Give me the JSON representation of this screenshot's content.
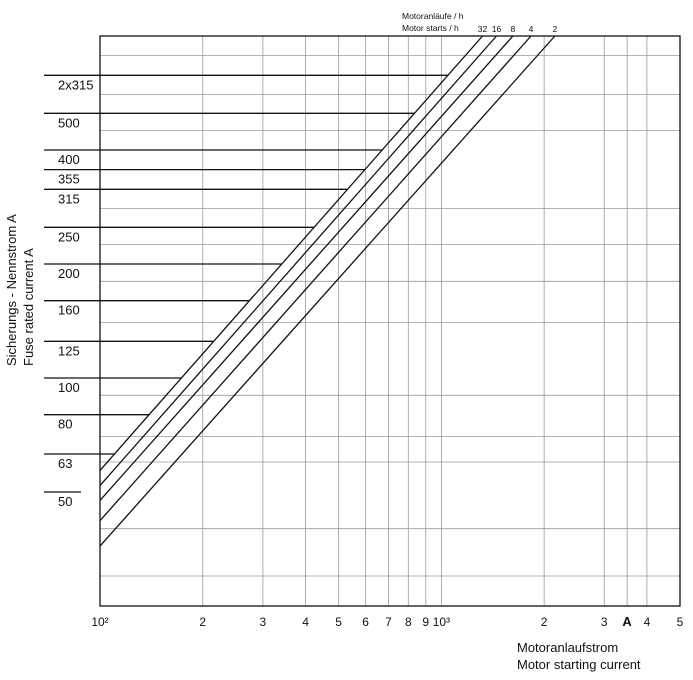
{
  "chart_data": {
    "type": "line",
    "x_scale": "log",
    "y_scale": "log",
    "xlim": [
      100,
      5000
    ],
    "ylim": [
      25,
      800
    ],
    "grid": true,
    "x_tick_labels": [
      {
        "value": 100,
        "label": "10²"
      },
      {
        "value": 200,
        "label": "2"
      },
      {
        "value": 300,
        "label": "3"
      },
      {
        "value": 400,
        "label": "4"
      },
      {
        "value": 500,
        "label": "5"
      },
      {
        "value": 600,
        "label": "6"
      },
      {
        "value": 700,
        "label": "7"
      },
      {
        "value": 800,
        "label": "8"
      },
      {
        "value": 900,
        "label": "9"
      },
      {
        "value": 1000,
        "label": "10³"
      },
      {
        "value": 2000,
        "label": "2"
      },
      {
        "value": 3000,
        "label": "3"
      },
      {
        "value": 3500,
        "label": "A"
      },
      {
        "value": 4000,
        "label": "4"
      },
      {
        "value": 5000,
        "label": "5"
      }
    ],
    "xlabel": [
      "Motoranlaufstrom",
      "Motor starting current"
    ],
    "ylabel": [
      "Sicherungs - Nennstrom   A",
      "Fuse rated current   A"
    ],
    "fuse_ratings": [
      {
        "label": "50",
        "value": 50
      },
      {
        "label": "63",
        "value": 63
      },
      {
        "label": "80",
        "value": 80
      },
      {
        "label": "100",
        "value": 100
      },
      {
        "label": "125",
        "value": 125
      },
      {
        "label": "160",
        "value": 160
      },
      {
        "label": "200",
        "value": 200
      },
      {
        "label": "250",
        "value": 250
      },
      {
        "label": "315",
        "value": 315
      },
      {
        "label": "355",
        "value": 355
      },
      {
        "label": "400",
        "value": 400
      },
      {
        "label": "500",
        "value": 500
      },
      {
        "label": "2x315",
        "value": 630
      }
    ],
    "series_title": [
      "Motoranläufe / h",
      "Motor starts / h"
    ],
    "series": [
      {
        "name": "32",
        "points": [
          [
            100,
            57
          ],
          [
            1320,
            800
          ]
        ]
      },
      {
        "name": "16",
        "points": [
          [
            100,
            52
          ],
          [
            1450,
            800
          ]
        ]
      },
      {
        "name": "8",
        "points": [
          [
            100,
            47.5
          ],
          [
            1620,
            800
          ]
        ]
      },
      {
        "name": "4",
        "points": [
          [
            100,
            42
          ],
          [
            1830,
            800
          ]
        ]
      },
      {
        "name": "2",
        "points": [
          [
            100,
            36
          ],
          [
            2150,
            800
          ]
        ]
      }
    ]
  }
}
